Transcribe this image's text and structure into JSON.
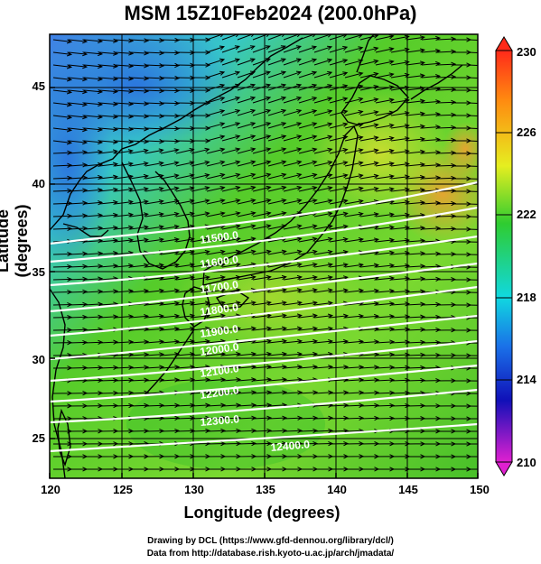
{
  "title": "MSM 15Z10Feb2024 (200.0hPa)",
  "xlabel": "Longitude (degrees)",
  "ylabel": "Latitude  (degrees)",
  "x_ticks": [
    "120",
    "125",
    "130",
    "135",
    "140",
    "145",
    "150"
  ],
  "y_ticks": [
    "45",
    "40",
    "35",
    "30",
    "25"
  ],
  "colorbar": {
    "ticks": [
      "230",
      "226",
      "222",
      "218",
      "214",
      "210"
    ],
    "min": 210,
    "max": 230
  },
  "contour_labels": [
    "11500.0",
    "11600.0",
    "11700.0",
    "11800.0",
    "11900.0",
    "12000.0",
    "12100.0",
    "12200.0",
    "12300.0",
    "12400.0"
  ],
  "credit_line1": "Drawing by DCL (https://www.gfd-dennou.org/library/dcl/)",
  "credit_line2": "Data from http://database.rish.kyoto-u.ac.jp/arch/jmadata/",
  "colors": {
    "cold": "#4aa8e6",
    "mid": "#55cc22",
    "warm": "#e8a020",
    "contour": "#ffffff"
  }
}
